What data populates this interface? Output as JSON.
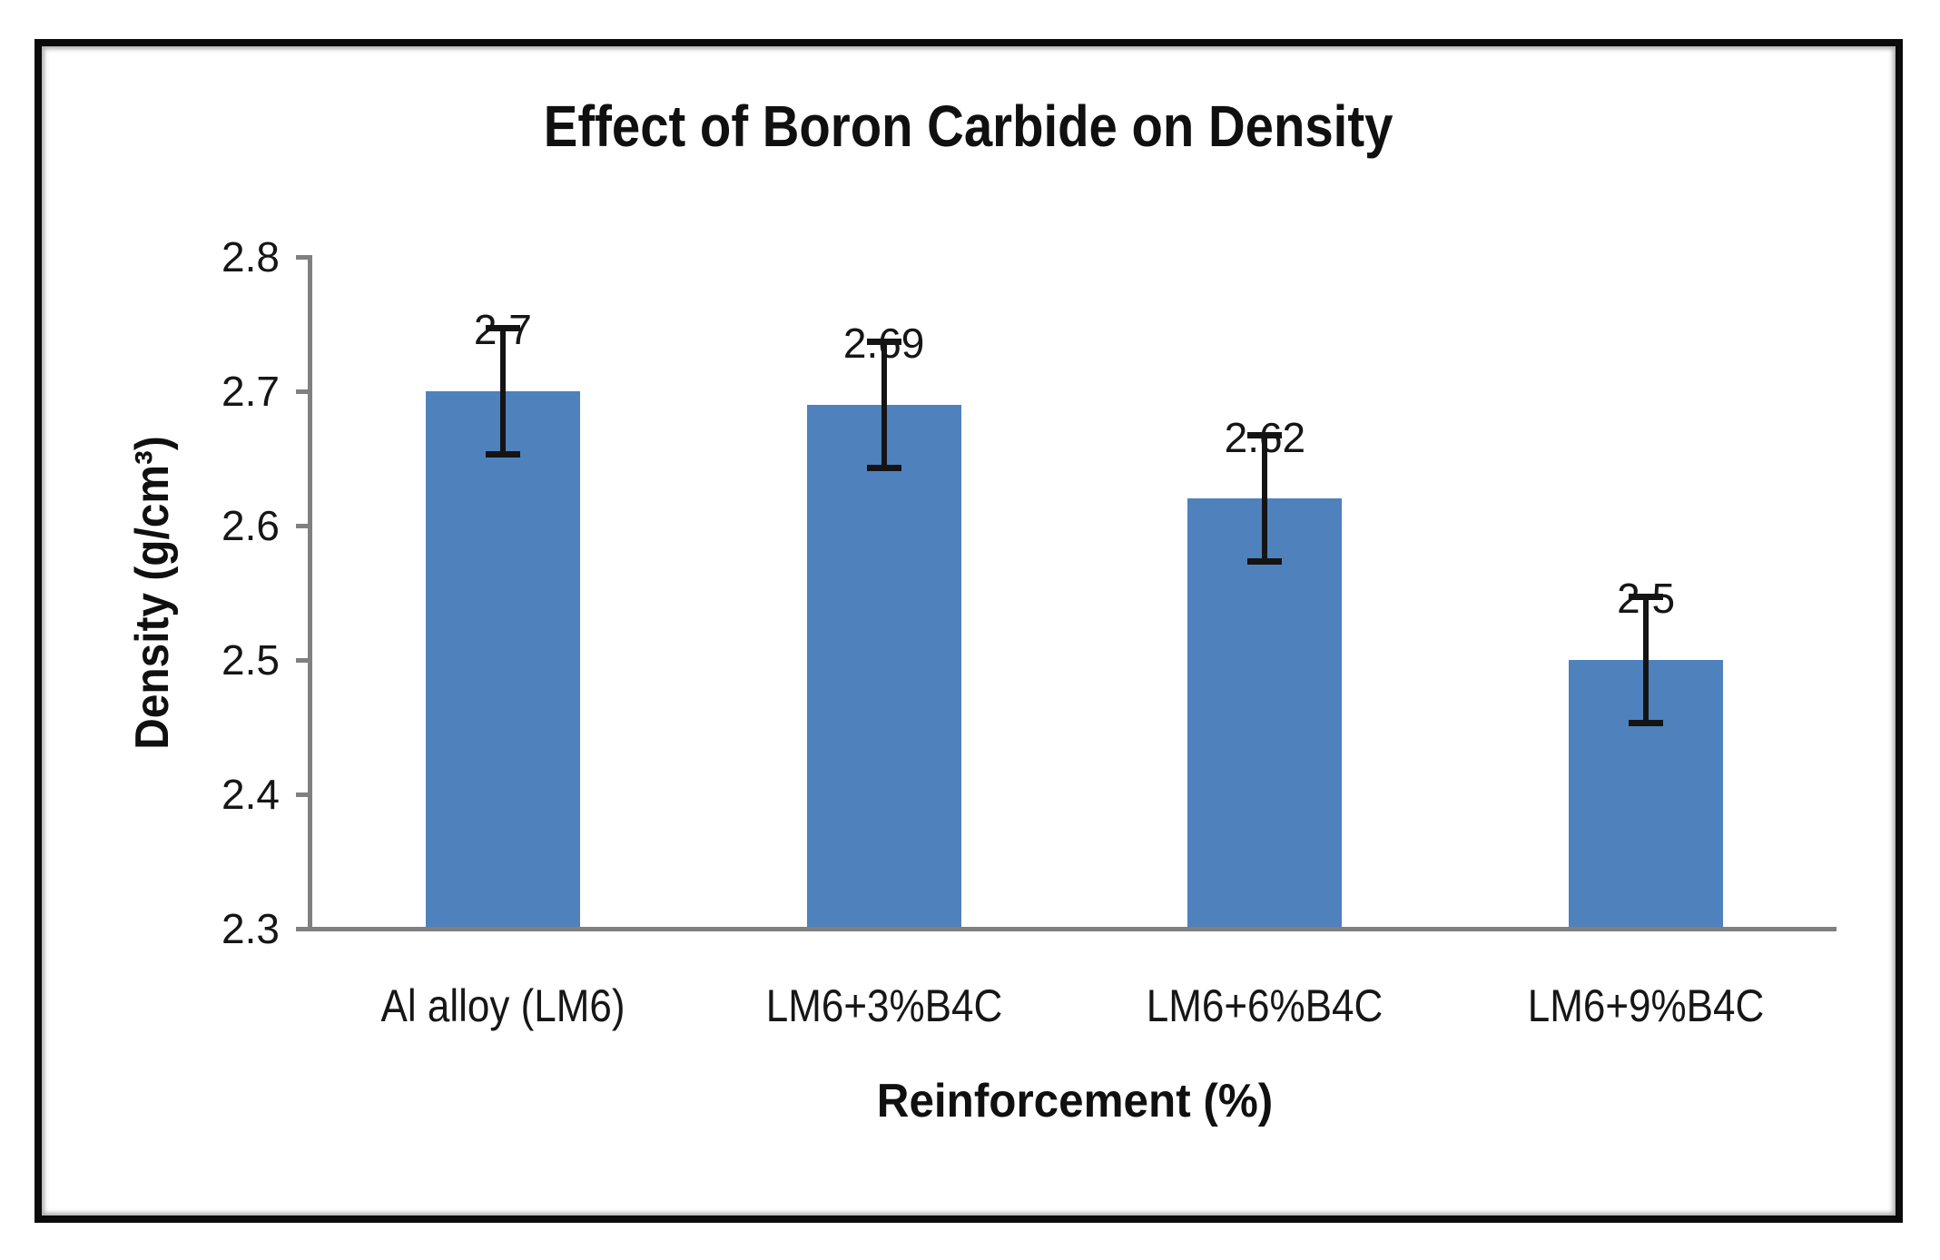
{
  "chart_data": {
    "type": "bar",
    "title": "Effect of Boron Carbide on Density",
    "xlabel": "Reinforcement (%)",
    "ylabel": "Density (g/cm³)",
    "categories": [
      "Al alloy (LM6)",
      "LM6+3%B4C",
      "LM6+6%B4C",
      "LM6+9%B4C"
    ],
    "values": [
      2.7,
      2.69,
      2.62,
      2.5
    ],
    "data_labels": [
      "2.7",
      "2.69",
      "2.62",
      "2.5"
    ],
    "error_bars": [
      0.047,
      0.047,
      0.047,
      0.047
    ],
    "ylim": [
      2.3,
      2.8
    ],
    "ytick_step": 0.1,
    "ytick_labels": [
      "2.3",
      "2.4",
      "2.5",
      "2.6",
      "2.7",
      "2.8"
    ],
    "grid": false,
    "legend": "none",
    "colors": {
      "bar": "#4f81bd",
      "axis": "#808080",
      "error_bar": "#141414",
      "text": "#161616",
      "frame": "#0b0b0b",
      "background": "#ffffff"
    }
  }
}
